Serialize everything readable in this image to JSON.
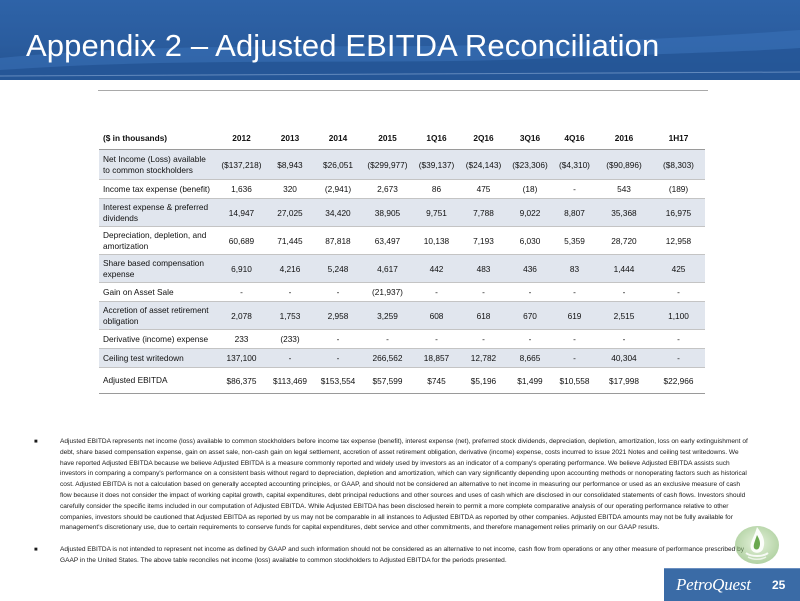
{
  "slide": {
    "title": "Appendix 2 – Adjusted EBITDA Reconciliation",
    "page_number": "25",
    "company_logo_text": "PetroQuest"
  },
  "table": {
    "columns": [
      "($ in thousands)",
      "2012",
      "2013",
      "2014",
      "2015",
      "1Q16",
      "2Q16",
      "3Q16",
      "4Q16",
      "2016",
      "1H17"
    ],
    "rows": [
      {
        "label": "Net Income (Loss) available to common stockholders",
        "values": [
          "($137,218)",
          "$8,943",
          "$26,051",
          "($299,977)",
          "($39,137)",
          "($24,143)",
          "($23,306)",
          "($4,310)",
          "($90,896)",
          "($8,303)"
        ]
      },
      {
        "label": "Income tax expense (benefit)",
        "values": [
          "1,636",
          "320",
          "(2,941)",
          "2,673",
          "86",
          "475",
          "(18)",
          "-",
          "543",
          "(189)"
        ]
      },
      {
        "label": "Interest expense & preferred dividends",
        "values": [
          "14,947",
          "27,025",
          "34,420",
          "38,905",
          "9,751",
          "7,788",
          "9,022",
          "8,807",
          "35,368",
          "16,975"
        ]
      },
      {
        "label": "Depreciation, depletion, and amortization",
        "values": [
          "60,689",
          "71,445",
          "87,818",
          "63,497",
          "10,138",
          "7,193",
          "6,030",
          "5,359",
          "28,720",
          "12,958"
        ]
      },
      {
        "label": "Share based compensation expense",
        "values": [
          "6,910",
          "4,216",
          "5,248",
          "4,617",
          "442",
          "483",
          "436",
          "83",
          "1,444",
          "425"
        ]
      },
      {
        "label": "Gain on Asset Sale",
        "values": [
          "-",
          "-",
          "-",
          "(21,937)",
          "-",
          "-",
          "-",
          "-",
          "-",
          "-"
        ]
      },
      {
        "label": "Accretion of asset retirement obligation",
        "values": [
          "2,078",
          "1,753",
          "2,958",
          "3,259",
          "608",
          "618",
          "670",
          "619",
          "2,515",
          "1,100"
        ]
      },
      {
        "label": "Derivative (income) expense",
        "values": [
          "233",
          "(233)",
          "-",
          "-",
          "-",
          "-",
          "-",
          "-",
          "-",
          "-"
        ]
      },
      {
        "label": "Ceiling test writedown",
        "values": [
          "137,100",
          "-",
          "-",
          "266,562",
          "18,857",
          "12,782",
          "8,665",
          "-",
          "40,304",
          "-"
        ]
      },
      {
        "label": "Adjusted EBITDA",
        "values": [
          "$86,375",
          "$113,469",
          "$153,554",
          "$57,599",
          "$745",
          "$5,196",
          "$1,499",
          "$10,558",
          "$17,998",
          "$22,966"
        ]
      }
    ]
  },
  "notes": [
    "Adjusted EBITDA represents net income (loss) available to common stockholders before income tax expense (benefit), interest expense (net), preferred stock dividends, depreciation, depletion, amortization, loss on early extinguishment of debt, share based compensation expense, gain on asset sale, non-cash gain on legal settlement, accretion of asset retirement obligation, derivative (income) expense, costs incurred to issue 2021 Notes and ceiling test writedowns. We have reported Adjusted EBITDA because we believe Adjusted EBITDA is a measure commonly reported and widely used by investors as an indicator of a company's operating performance. We believe Adjusted EBITDA assists such investors in comparing a company's performance on a consistent basis without regard to depreciation, depletion and amortization, which can vary significantly depending upon accounting methods or nonoperating factors such as historical cost. Adjusted EBITDA is not a calculation based on generally accepted accounting principles, or GAAP, and should not be considered an alternative to net income in measuring our performance or used as an exclusive measure of cash flow because it does not consider the impact of working capital growth, capital expenditures, debt principal reductions and other sources and uses of cash which are disclosed in our consolidated statements of cash flows. Investors should carefully consider the specific items included in our computation of Adjusted EBITDA. While Adjusted EBITDA has been disclosed herein to permit a more complete comparative analysis of our operating performance relative to other companies, investors should be cautioned that Adjusted EBITDA as reported by us may not be comparable in all instances to Adjusted EBITDA as reported by other companies. Adjusted EBITDA amounts may not be fully available for management's discretionary use, due to certain requirements to conserve funds for capital expenditures, debt service and other commitments, and therefore management relies primarily on our GAAP results.",
    "Adjusted EBITDA is not intended to represent net income as defined by GAAP and such information should not be considered as an alternative to net income, cash flow from operations or any other measure of performance prescribed by GAAP in the United States. The above table reconciles net income (loss) available to common stockholders to Adjusted EBITDA for the periods presented."
  ],
  "colors": {
    "header_blue": "#2a5c9e",
    "row_shade": "#e1e6ee",
    "logo_green": "#6aa84f"
  }
}
